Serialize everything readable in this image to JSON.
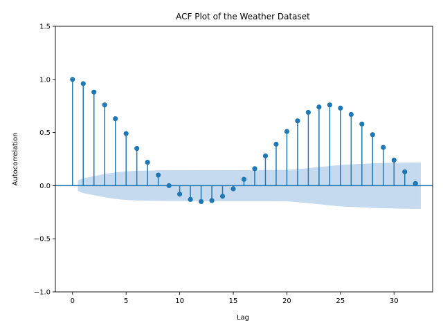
{
  "chart_data": {
    "type": "scatter",
    "title": "ACF Plot of the Weather Dataset",
    "xlabel": "Lag",
    "ylabel": "Autocorrelation",
    "xlim": [
      -1.6,
      33.6
    ],
    "ylim": [
      -1.0,
      1.5
    ],
    "xticks": [
      0,
      5,
      10,
      15,
      20,
      25,
      30
    ],
    "xtick_labels": [
      "0",
      "5",
      "10",
      "15",
      "20",
      "25",
      "30"
    ],
    "yticks": [
      -1.0,
      -0.5,
      0.0,
      0.5,
      1.0,
      1.5
    ],
    "ytick_labels": [
      "−1.0",
      "−0.5",
      "0.0",
      "0.5",
      "1.0",
      "1.5"
    ],
    "grid": false,
    "colors": {
      "stem": "#1f77b4",
      "marker": "#1f77b4",
      "confidence_band": "#c5daee",
      "zero_line": "#1f77b4"
    },
    "series": [
      {
        "x": [
          0,
          1,
          2,
          3,
          4,
          5,
          6,
          7,
          8,
          9,
          10,
          11,
          12,
          13,
          14,
          15,
          16,
          17,
          18,
          19,
          20,
          21,
          22,
          23,
          24,
          25,
          26,
          27,
          28,
          29,
          30,
          31,
          32
        ],
        "values": [
          1.0,
          0.96,
          0.88,
          0.76,
          0.63,
          0.49,
          0.35,
          0.22,
          0.1,
          0.0,
          -0.08,
          -0.13,
          -0.15,
          -0.14,
          -0.1,
          -0.03,
          0.06,
          0.16,
          0.28,
          0.39,
          0.51,
          0.61,
          0.69,
          0.74,
          0.76,
          0.73,
          0.67,
          0.58,
          0.48,
          0.36,
          0.24,
          0.13,
          0.02
        ]
      }
    ],
    "confidence_band": {
      "x": [
        0.5,
        1,
        2,
        3,
        4,
        5,
        6,
        7,
        8,
        9,
        10,
        15,
        20,
        21,
        22,
        23,
        24,
        25,
        26,
        27,
        28,
        29,
        30,
        31,
        32,
        32.5
      ],
      "upper": [
        0.05,
        0.07,
        0.09,
        0.11,
        0.125,
        0.135,
        0.14,
        0.142,
        0.144,
        0.145,
        0.145,
        0.146,
        0.148,
        0.155,
        0.165,
        0.175,
        0.185,
        0.195,
        0.2,
        0.205,
        0.21,
        0.213,
        0.215,
        0.217,
        0.218,
        0.218
      ]
    }
  }
}
